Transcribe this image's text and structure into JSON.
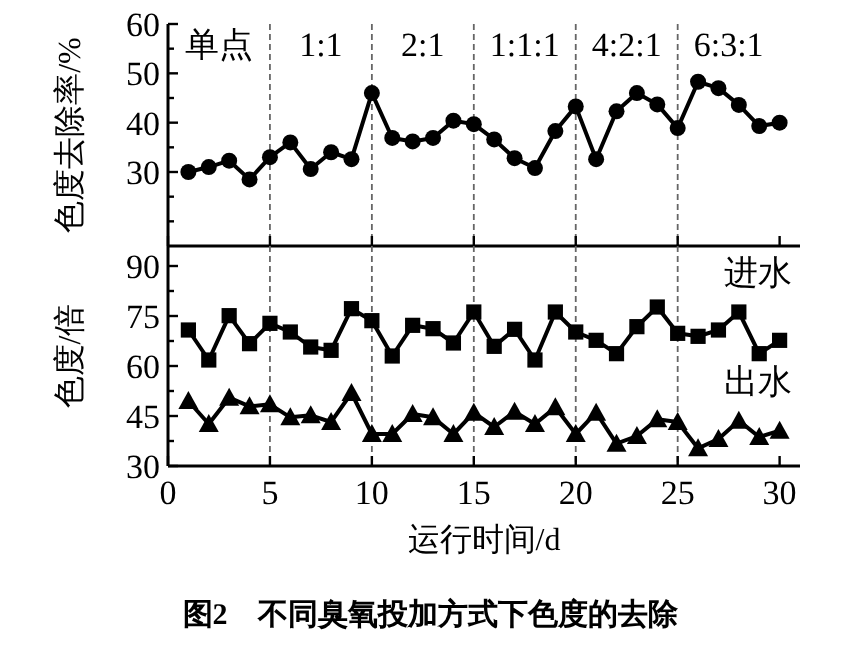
{
  "chart_data": [
    {
      "type": "line",
      "ylabel": "色度去除率/%",
      "x": [
        1,
        2,
        3,
        4,
        5,
        6,
        7,
        8,
        9,
        10,
        11,
        12,
        13,
        14,
        15,
        16,
        17,
        18,
        19,
        20,
        21,
        22,
        23,
        24,
        25,
        26,
        27,
        28,
        29,
        30
      ],
      "xlim": [
        0,
        31
      ],
      "xticks": [
        0,
        5,
        10,
        15,
        20,
        25,
        30
      ],
      "ylim": [
        15,
        60
      ],
      "yticks": [
        {
          "value": 20,
          "label": null
        },
        {
          "value": 25,
          "label": null
        },
        30,
        {
          "value": 35,
          "label": null
        },
        40,
        {
          "value": 45,
          "label": null
        },
        50,
        {
          "value": 55,
          "label": null
        },
        60
      ],
      "tick_labels": "y",
      "grid": false,
      "series": [
        {
          "color": "#000000",
          "marker": "circle",
          "values": [
            30,
            31,
            32.3,
            28.5,
            33,
            36,
            30.6,
            34,
            32.6,
            46,
            36.9,
            36.2,
            36.9,
            40.4,
            39.7,
            36.6,
            32.8,
            30.8,
            38.3,
            43.3,
            32.6,
            42.3,
            46,
            43.7,
            38.9,
            48.3,
            47,
            43.6,
            39.3,
            40
          ]
        }
      ],
      "ref_lines": [
        {
          "axis": "x",
          "value": 5,
          "color": "#666666",
          "line_style": "dashed"
        },
        {
          "axis": "x",
          "value": 10,
          "color": "#666666",
          "line_style": "dashed"
        },
        {
          "axis": "x",
          "value": 15,
          "color": "#666666",
          "line_style": "dashed"
        },
        {
          "axis": "x",
          "value": 20,
          "color": "#666666",
          "line_style": "dashed"
        },
        {
          "axis": "x",
          "value": 25,
          "color": "#666666",
          "line_style": "dashed"
        }
      ],
      "annotations": [
        "单点",
        "1:1",
        "2:1",
        "1:1:1",
        "4:2:1",
        "6:3:1"
      ]
    },
    {
      "type": "line",
      "ylabel": "色度/倍",
      "xlabel": "运行时间/d",
      "x": [
        1,
        2,
        3,
        4,
        5,
        6,
        7,
        8,
        9,
        10,
        11,
        12,
        13,
        14,
        15,
        16,
        17,
        18,
        19,
        20,
        21,
        22,
        23,
        24,
        25,
        26,
        27,
        28,
        29,
        30
      ],
      "xlim": [
        0,
        31
      ],
      "xticks": [
        0,
        5,
        10,
        15,
        20,
        25,
        30
      ],
      "ylim": [
        30,
        96
      ],
      "yticks": [
        30,
        {
          "value": 37.5,
          "label": null
        },
        45,
        {
          "value": 52.5,
          "label": null
        },
        60,
        {
          "value": 67.5,
          "label": null
        },
        75,
        {
          "value": 82.5,
          "label": null
        },
        90
      ],
      "grid": false,
      "series": [
        {
          "name": "进水",
          "color": "#000000",
          "marker": "square",
          "values": [
            70.8,
            61.8,
            75.1,
            66.7,
            72.8,
            70.2,
            65.7,
            64.7,
            77.2,
            73.6,
            63,
            72.2,
            71.2,
            66.9,
            76.2,
            65.9,
            71,
            61.8,
            76.2,
            70.2,
            67.7,
            63.7,
            71.8,
            77.7,
            69.8,
            68.9,
            70.8,
            76.2,
            63.7,
            67.7
          ]
        },
        {
          "name": "出水",
          "color": "#000000",
          "marker": "triangle",
          "values": [
            49.5,
            42.6,
            50.5,
            47.9,
            48.5,
            44.6,
            45.2,
            43.2,
            51.9,
            39.6,
            39.6,
            45.6,
            44.6,
            39.6,
            46,
            41.7,
            46.3,
            42.6,
            47.6,
            39.6,
            46,
            36.7,
            39,
            44,
            43.2,
            35.3,
            38.1,
            43.6,
            38.7,
            40.6
          ]
        }
      ],
      "ref_lines": [
        {
          "axis": "x",
          "value": 5,
          "color": "#666666",
          "line_style": "dashed"
        },
        {
          "axis": "x",
          "value": 10,
          "color": "#666666",
          "line_style": "dashed"
        },
        {
          "axis": "x",
          "value": 15,
          "color": "#666666",
          "line_style": "dashed"
        },
        {
          "axis": "x",
          "value": 20,
          "color": "#666666",
          "line_style": "dashed"
        },
        {
          "axis": "x",
          "value": 25,
          "color": "#666666",
          "line_style": "dashed"
        }
      ],
      "annotations": [
        "图2　不同臭氧投加方式下色度的去除"
      ]
    }
  ]
}
